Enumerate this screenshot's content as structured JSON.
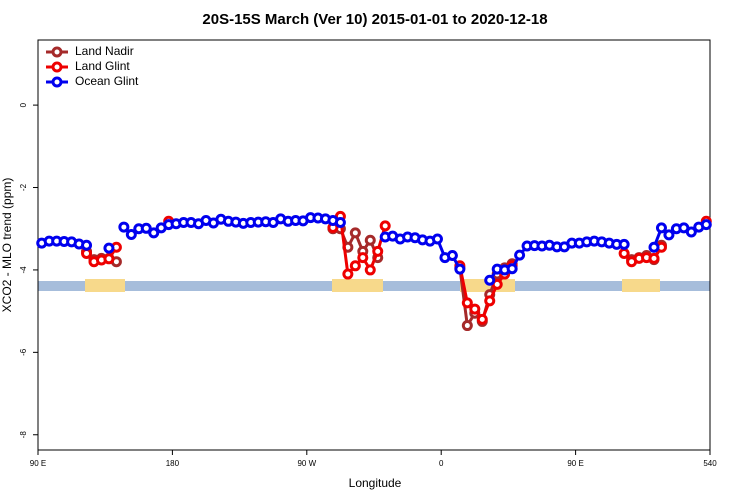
{
  "chart_data": {
    "type": "line",
    "title": "20S-15S March (Ver 10)   2015-01-01 to 2020-12-18",
    "x_label": "Longitude",
    "y_label": "XCO2 - MLO trend (ppm)",
    "xlim": [
      90,
      540
    ],
    "ylim": [
      -8.37,
      1.58
    ],
    "xticks": [
      {
        "value": 90,
        "label": "90 E"
      },
      180,
      {
        "value": 270,
        "label": "90 W"
      },
      {
        "value": 360,
        "label": "0"
      },
      {
        "value": 450,
        "label": "90 E"
      },
      540
    ],
    "yticks": [
      0,
      -2,
      -4,
      -6,
      -8
    ],
    "legend": "top-left",
    "x": [
      92.5,
      97.5,
      102.5,
      107.5,
      112.5,
      117.5,
      122.5,
      127.5,
      132.5,
      137.5,
      142.5,
      147.5,
      152.5,
      157.5,
      162.5,
      167.5,
      172.5,
      177.5,
      182.5,
      187.5,
      192.5,
      197.5,
      202.5,
      207.5,
      212.5,
      217.5,
      222.5,
      227.5,
      232.5,
      237.5,
      242.5,
      247.5,
      252.5,
      257.5,
      262.5,
      267.5,
      272.5,
      277.5,
      282.5,
      287.5,
      292.5,
      297.5,
      302.5,
      307.5,
      312.5,
      317.5,
      322.5,
      327.5,
      332.5,
      337.5,
      342.5,
      347.5,
      352.5,
      357.5,
      362.5,
      367.5,
      372.5,
      377.5,
      382.5,
      387.5,
      392.5,
      397.5,
      402.5,
      407.5,
      412.5,
      417.5,
      422.5,
      427.5,
      432.5,
      437.5,
      442.5,
      447.5,
      452.5,
      457.5,
      462.5,
      467.5,
      472.5,
      477.5,
      482.5,
      487.5,
      492.5,
      497.5,
      502.5,
      507.5,
      512.5,
      517.5,
      522.5,
      527.5,
      532.5,
      537.5
    ],
    "series": [
      {
        "name": "Land Nadir",
        "color": "#a52a2a",
        "values": [
          null,
          null,
          null,
          null,
          null,
          null,
          -3.55,
          -3.75,
          -3.72,
          -3.72,
          -3.8,
          null,
          null,
          null,
          null,
          null,
          null,
          null,
          null,
          null,
          null,
          null,
          null,
          null,
          null,
          null,
          null,
          null,
          null,
          null,
          null,
          null,
          null,
          null,
          null,
          null,
          null,
          null,
          null,
          -3.0,
          -3.0,
          -3.45,
          -3.1,
          -3.55,
          -3.28,
          -3.7,
          null,
          null,
          null,
          null,
          null,
          null,
          null,
          null,
          null,
          null,
          -3.95,
          -5.35,
          -5.05,
          -5.25,
          -4.6,
          -4.1,
          -3.95,
          -3.85,
          null,
          null,
          null,
          null,
          null,
          null,
          null,
          null,
          null,
          null,
          null,
          null,
          null,
          null,
          null,
          -3.75,
          -3.7,
          -3.65,
          -3.75,
          -3.4,
          null,
          null,
          null,
          null,
          null,
          null
        ]
      },
      {
        "name": "Land Glint",
        "color": "#ee0000",
        "values": [
          null,
          null,
          null,
          null,
          null,
          null,
          -3.6,
          -3.8,
          -3.76,
          -3.73,
          -3.45,
          null,
          null,
          null,
          null,
          null,
          null,
          -2.82,
          null,
          null,
          null,
          null,
          null,
          null,
          null,
          null,
          null,
          null,
          null,
          null,
          null,
          null,
          null,
          null,
          null,
          null,
          null,
          null,
          null,
          -2.97,
          -2.7,
          -4.1,
          -3.9,
          -3.7,
          -4.0,
          -3.55,
          -2.93,
          null,
          null,
          null,
          null,
          null,
          null,
          null,
          null,
          null,
          -3.9,
          -4.8,
          -4.95,
          -5.2,
          -4.75,
          -4.35,
          -4.1,
          -3.9,
          null,
          null,
          null,
          null,
          null,
          null,
          null,
          null,
          null,
          null,
          null,
          null,
          null,
          null,
          -3.6,
          -3.8,
          -3.72,
          -3.7,
          -3.72,
          -3.45,
          null,
          null,
          null,
          null,
          null,
          -2.82
        ]
      },
      {
        "name": "Ocean Glint",
        "color": "#0000ee",
        "values": [
          -3.35,
          -3.3,
          -3.3,
          -3.31,
          -3.32,
          -3.37,
          -3.4,
          null,
          null,
          -3.47,
          null,
          -2.96,
          -3.14,
          -3.0,
          -2.99,
          -3.1,
          -2.98,
          -2.9,
          -2.88,
          -2.85,
          -2.85,
          -2.88,
          -2.8,
          -2.86,
          -2.77,
          -2.82,
          -2.84,
          -2.87,
          -2.85,
          -2.84,
          -2.83,
          -2.85,
          -2.76,
          -2.82,
          -2.8,
          -2.81,
          -2.73,
          -2.74,
          -2.76,
          -2.8,
          -2.85,
          null,
          null,
          null,
          null,
          null,
          -3.2,
          -3.18,
          -3.25,
          -3.2,
          -3.22,
          -3.27,
          -3.3,
          -3.25,
          -3.7,
          -3.65,
          -3.98,
          null,
          null,
          null,
          -4.25,
          -3.98,
          -4.0,
          -3.97,
          -3.64,
          -3.42,
          -3.41,
          -3.42,
          -3.4,
          -3.44,
          -3.44,
          -3.35,
          -3.35,
          -3.32,
          -3.3,
          -3.32,
          -3.35,
          -3.38,
          -3.38,
          null,
          null,
          null,
          -3.45,
          -2.98,
          -3.15,
          -3.0,
          -2.98,
          -3.08,
          -2.96,
          -2.9
        ]
      }
    ]
  }
}
